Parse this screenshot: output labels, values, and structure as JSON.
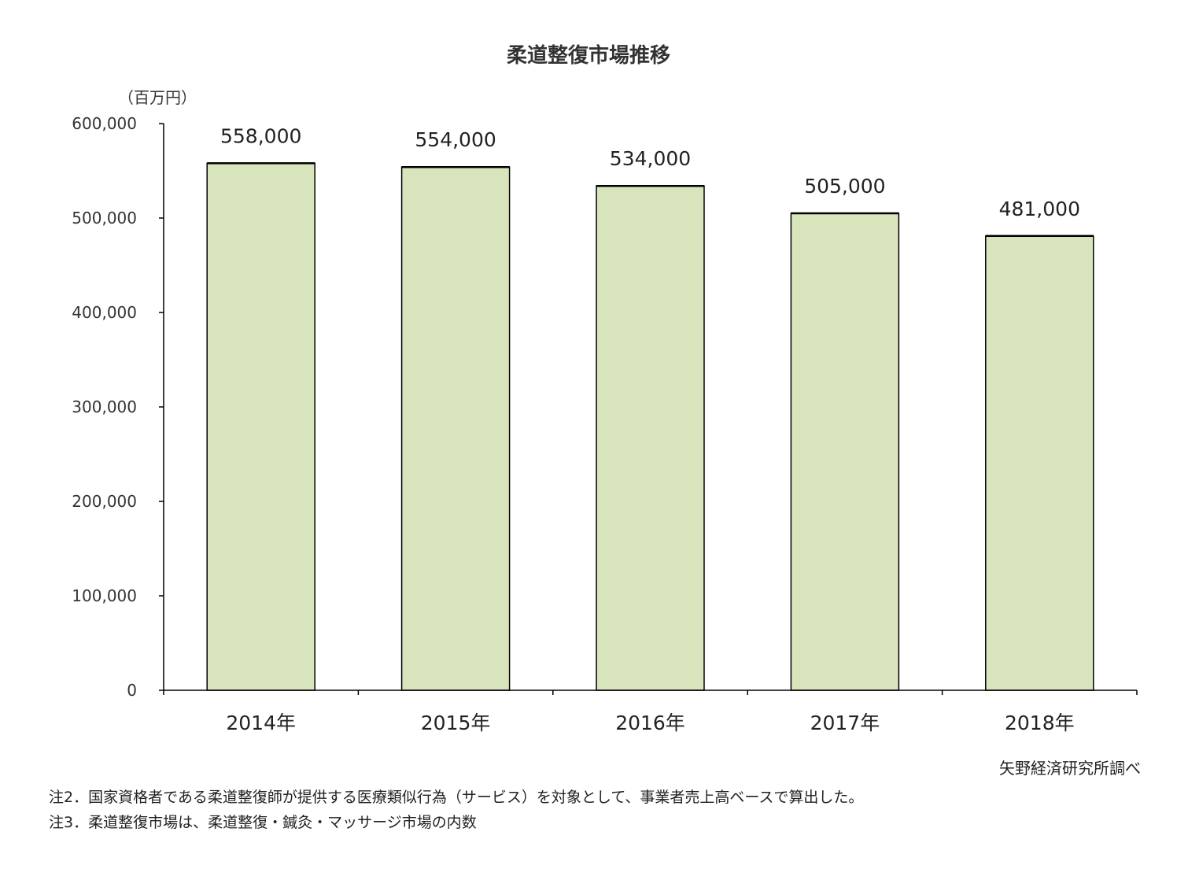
{
  "chart_data": {
    "type": "bar",
    "title": "柔道整復市場推移",
    "unit_label": "（百万円）",
    "categories": [
      "2014年",
      "2015年",
      "2016年",
      "2017年",
      "2018年"
    ],
    "values": [
      558000,
      554000,
      534000,
      505000,
      481000
    ],
    "value_labels": [
      "558,000",
      "554,000",
      "534,000",
      "505,000",
      "481,000"
    ],
    "ylim": [
      0,
      600000
    ],
    "yticks": [
      0,
      100000,
      200000,
      300000,
      400000,
      500000,
      600000
    ],
    "ytick_labels": [
      "0",
      "100,000",
      "200,000",
      "300,000",
      "400,000",
      "500,000",
      "600,000"
    ],
    "grid": false,
    "bar_color": "#d8e4bc",
    "bar_edge_color": "#000000"
  },
  "source": "矢野経済研究所調べ",
  "notes": [
    "注2．国家資格者である柔道整復師が提供する医療類似行為（サービス）を対象として、事業者売上高ベースで算出した。",
    "注3．柔道整復市場は、柔道整復・鍼灸・マッサージ市場の内数"
  ]
}
